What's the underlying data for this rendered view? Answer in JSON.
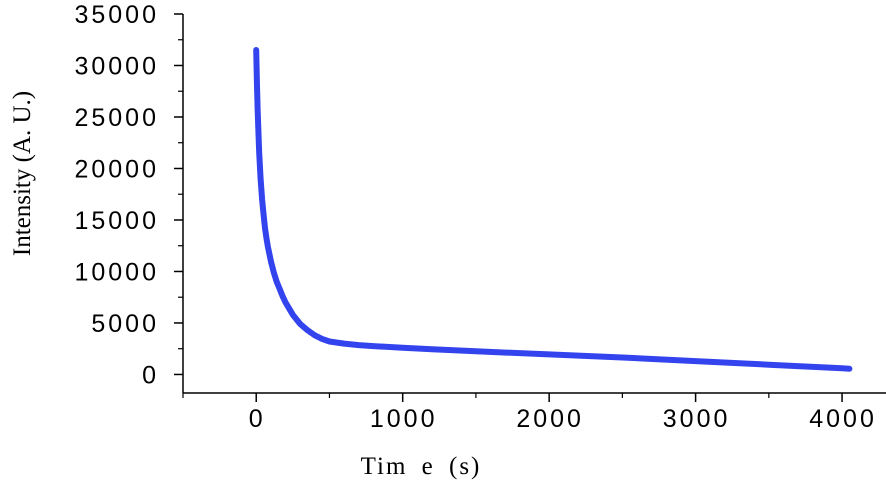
{
  "chart_data": {
    "type": "line",
    "title": "",
    "xlabel": "Tim e (s)",
    "ylabel": "Intensity (A. U.)",
    "xlim": [
      -500,
      4300
    ],
    "ylim": [
      -1800,
      35000
    ],
    "x_ticks": [
      0,
      1000,
      2000,
      3000,
      4000
    ],
    "y_ticks": [
      0,
      5000,
      10000,
      15000,
      20000,
      25000,
      30000,
      35000
    ],
    "x_tick_labels": [
      "0",
      "1000",
      "2000",
      "3000",
      "4000"
    ],
    "y_tick_labels": [
      "0",
      "5000",
      "10000",
      "15000",
      "20000",
      "25000",
      "30000",
      "35000"
    ],
    "grid": false,
    "series": [
      {
        "color": "#3344ee",
        "x": [
          0,
          5,
          10,
          20,
          30,
          40,
          50,
          60,
          70,
          80,
          100,
          120,
          140,
          160,
          180,
          200,
          250,
          300,
          350,
          400,
          450,
          500,
          600,
          700,
          800,
          1000,
          1200,
          1500,
          2000,
          2500,
          3000,
          3500,
          4000,
          4050
        ],
        "y": [
          31500,
          28000,
          25500,
          21500,
          19000,
          17000,
          15500,
          14200,
          13200,
          12400,
          11000,
          9900,
          9000,
          8300,
          7600,
          7000,
          5800,
          4900,
          4300,
          3800,
          3450,
          3200,
          3000,
          2850,
          2750,
          2600,
          2450,
          2250,
          1950,
          1650,
          1300,
          950,
          600,
          550
        ]
      }
    ]
  }
}
